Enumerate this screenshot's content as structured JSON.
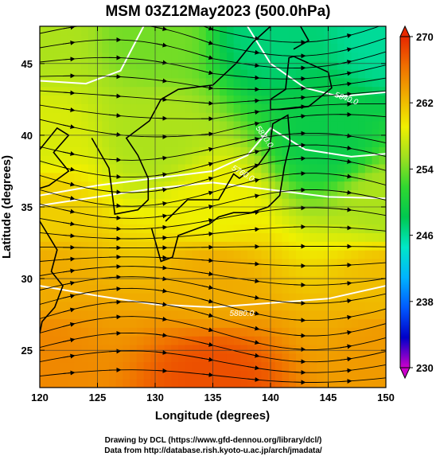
{
  "chart_data": {
    "type": "heatmap",
    "title": "MSM 03Z12May2023 (500.0hPa)",
    "xlabel": "Longitude (degrees)",
    "ylabel": "Latitude  (degrees)",
    "xlim": [
      120,
      150
    ],
    "ylim": [
      22.4,
      47.6
    ],
    "xticks": [
      "120",
      "125",
      "130",
      "135",
      "140",
      "145",
      "150"
    ],
    "yticks": [
      "25",
      "30",
      "35",
      "40",
      "45"
    ],
    "grid": true,
    "colorbar": {
      "position": "right",
      "range": [
        230,
        270
      ],
      "ticks": [
        "270",
        "262",
        "254",
        "246",
        "238",
        "230"
      ],
      "colors": [
        "#cc00cc",
        "#0000c8",
        "#005aff",
        "#00b4ff",
        "#00e8c8",
        "#00c850",
        "#30d830",
        "#a0e020",
        "#f0f000",
        "#f0b000",
        "#f07000",
        "#e82800"
      ]
    },
    "field_samples": [
      {
        "lon": 120,
        "lat": 47,
        "value": 256
      },
      {
        "lon": 130,
        "lat": 47,
        "value": 254
      },
      {
        "lon": 140,
        "lat": 47,
        "value": 247
      },
      {
        "lon": 150,
        "lat": 47,
        "value": 246
      },
      {
        "lon": 120,
        "lat": 40,
        "value": 258
      },
      {
        "lon": 130,
        "lat": 40,
        "value": 256
      },
      {
        "lon": 145,
        "lat": 40,
        "value": 249
      },
      {
        "lon": 120,
        "lat": 35,
        "value": 261
      },
      {
        "lon": 135,
        "lat": 35,
        "value": 259
      },
      {
        "lon": 150,
        "lat": 35,
        "value": 256
      },
      {
        "lon": 120,
        "lat": 30,
        "value": 263
      },
      {
        "lon": 135,
        "lat": 30,
        "value": 263
      },
      {
        "lon": 150,
        "lat": 30,
        "value": 262
      },
      {
        "lon": 120,
        "lat": 25,
        "value": 265
      },
      {
        "lon": 135,
        "lat": 23,
        "value": 268
      },
      {
        "lon": 150,
        "lat": 25,
        "value": 264
      }
    ],
    "contour_labels": [
      "5640.0",
      "5820.0",
      "5760.0",
      "5820.0",
      "5880.0"
    ]
  },
  "credits": {
    "drawing": "Drawing by DCL (https://www.gfd-dennou.org/library/dcl/)",
    "data": "Data from http://database.rish.kyoto-u.ac.jp/arch/jmadata/"
  }
}
